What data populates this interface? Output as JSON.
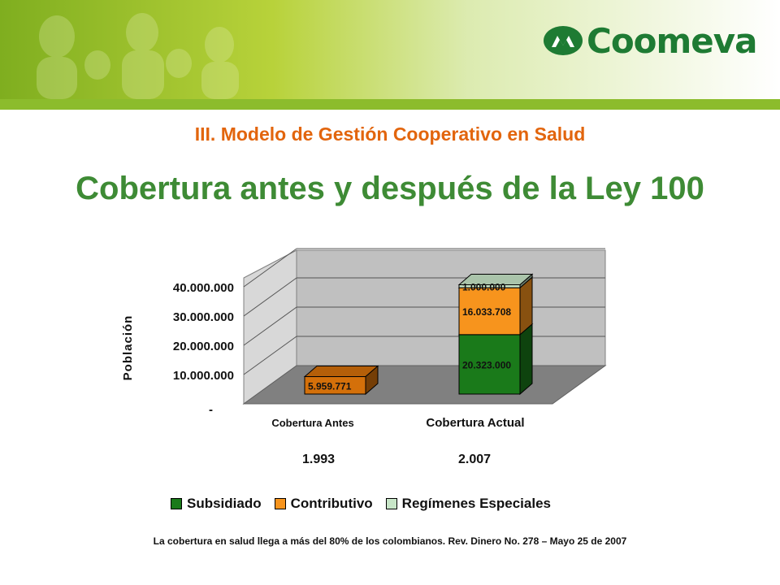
{
  "brand": {
    "name": "Coomeva"
  },
  "section_heading": "III. Modelo de Gestión Cooperativo en Salud",
  "title": "Cobertura antes y después de la Ley 100",
  "colors": {
    "subsidiado": "#1a7a1a",
    "contributivo": "#f7941d",
    "regimenes": "#c8e6c8",
    "antes_bar": "#d4700a",
    "section_heading": "#e2650d",
    "title": "#3e8b35",
    "brand": "#1e7b33"
  },
  "chart_data": {
    "type": "bar",
    "stacked": true,
    "style": "3d",
    "ylabel": "Población",
    "ylim": [
      0,
      40000000
    ],
    "y_ticks": [
      "-",
      "10.000.000",
      "20.000.000",
      "30.000.000",
      "40.000.000"
    ],
    "categories": [
      "Cobertura Antes",
      "Cobertura Actual"
    ],
    "category_years": [
      "1.993",
      "2.007"
    ],
    "series": [
      {
        "name": "Subsidiado",
        "values": [
          null,
          20323000
        ],
        "labels": [
          "",
          "20.323.000"
        ]
      },
      {
        "name": "Contributivo",
        "values": [
          5959771,
          16033708
        ],
        "labels": [
          "5.959.771",
          "16.033.708"
        ]
      },
      {
        "name": "Regímenes Especiales",
        "values": [
          null,
          1000000
        ],
        "labels": [
          "",
          "1.000.000"
        ]
      }
    ],
    "legend_position": "bottom",
    "grid": true
  },
  "source_note": "La cobertura en salud llega a más del 80% de los colombianos. Rev. Dinero No. 278 – Mayo 25 de 2007"
}
